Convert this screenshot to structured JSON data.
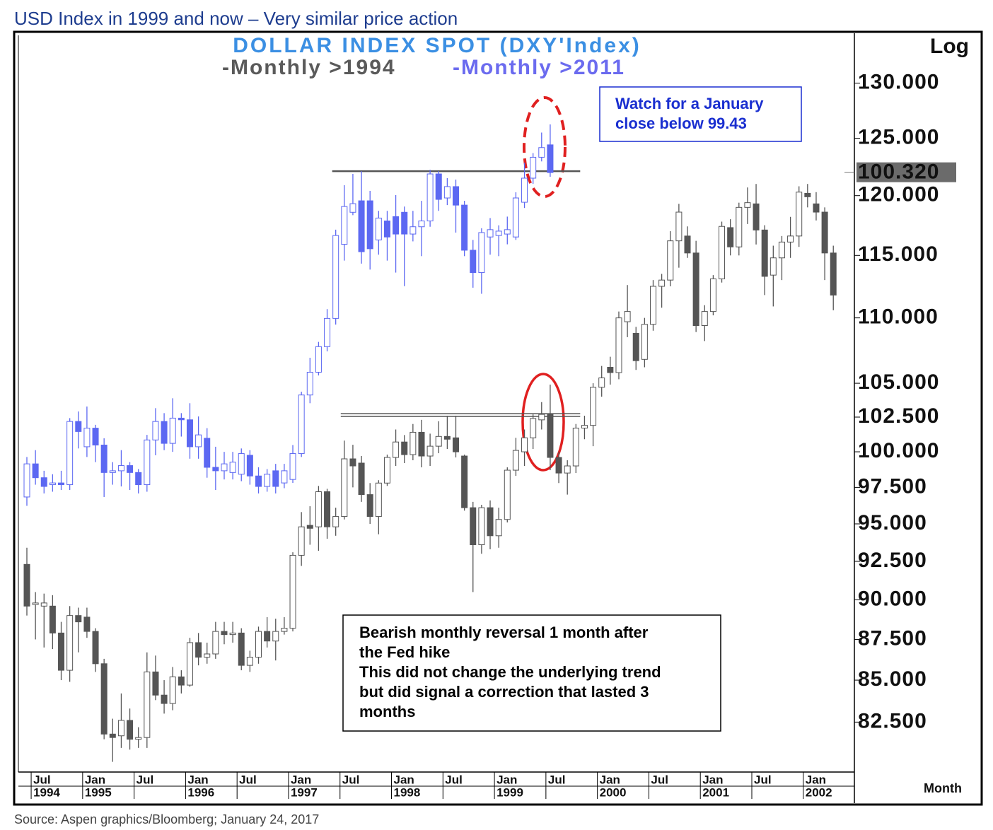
{
  "page_title": "USD Index in 1999 and now – Very similar price action",
  "source": "Source: Aspen graphics/Bloomberg; January 24, 2017",
  "chart_data": {
    "type": "candlestick",
    "title": "DOLLAR INDEX SPOT (DXY'Index)",
    "xlabel": "Month",
    "scale_label": "Log",
    "log_scale": true,
    "ylim": [
      79.7,
      134.5
    ],
    "y2lim": [
      65.5,
      110.6
    ],
    "yticks": [
      {
        "value": 130,
        "label": "130.000"
      },
      {
        "value": 125,
        "label": "125.000"
      },
      {
        "value": 120,
        "label": "120.000"
      },
      {
        "value": 115,
        "label": "115.000"
      },
      {
        "value": 110,
        "label": "110.000"
      },
      {
        "value": 105,
        "label": "105.000"
      },
      {
        "value": 102.5,
        "label": "102.500"
      },
      {
        "value": 100,
        "label": "100.000"
      },
      {
        "value": 97.5,
        "label": "97.500"
      },
      {
        "value": 95,
        "label": "95.000"
      },
      {
        "value": 92.5,
        "label": "92.500"
      },
      {
        "value": 90,
        "label": "90.000"
      },
      {
        "value": 87.5,
        "label": "87.500"
      },
      {
        "value": 85,
        "label": "85.000"
      },
      {
        "value": 82.5,
        "label": "82.500"
      }
    ],
    "current_tag": {
      "value": 100.32,
      "label": "100.320",
      "axis": "y2"
    },
    "x": [
      "1994-06",
      "1994-07",
      "1994-08",
      "1994-09",
      "1994-10",
      "1994-11",
      "1994-12",
      "1995-01",
      "1995-02",
      "1995-03",
      "1995-04",
      "1995-05",
      "1995-06",
      "1995-07",
      "1995-08",
      "1995-09",
      "1995-10",
      "1995-11",
      "1995-12",
      "1996-01",
      "1996-02",
      "1996-03",
      "1996-04",
      "1996-05",
      "1996-06",
      "1996-07",
      "1996-08",
      "1996-09",
      "1996-10",
      "1996-11",
      "1996-12",
      "1997-01",
      "1997-02",
      "1997-03",
      "1997-04",
      "1997-05",
      "1997-06",
      "1997-07",
      "1997-08",
      "1997-09",
      "1997-10",
      "1997-11",
      "1997-12",
      "1998-01",
      "1998-02",
      "1998-03",
      "1998-04",
      "1998-05",
      "1998-06",
      "1998-07",
      "1998-08",
      "1998-09",
      "1998-10",
      "1998-11",
      "1998-12",
      "1999-01",
      "1999-02",
      "1999-03",
      "1999-04",
      "1999-05",
      "1999-06",
      "1999-07",
      "1999-08",
      "1999-09",
      "1999-10",
      "1999-11",
      "1999-12",
      "2000-01",
      "2000-02",
      "2000-03",
      "2000-04",
      "2000-05",
      "2000-06",
      "2000-07",
      "2000-08",
      "2000-09",
      "2000-10",
      "2000-11",
      "2000-12",
      "2001-01",
      "2001-02",
      "2001-03",
      "2001-04",
      "2001-05",
      "2001-06",
      "2001-07",
      "2001-08",
      "2001-09",
      "2001-10",
      "2001-11",
      "2001-12",
      "2002-01",
      "2002-02",
      "2002-03",
      "2002-04"
    ],
    "xticks": [
      {
        "value": "1994-07",
        "label": "Jul",
        "year": "1994"
      },
      {
        "value": "1995-01",
        "label": "Jan",
        "year": "1995"
      },
      {
        "value": "1995-07",
        "label": "Jul"
      },
      {
        "value": "1996-01",
        "label": "Jan",
        "year": "1996"
      },
      {
        "value": "1996-07",
        "label": "Jul"
      },
      {
        "value": "1997-01",
        "label": "Jan",
        "year": "1997"
      },
      {
        "value": "1997-07",
        "label": "Jul"
      },
      {
        "value": "1998-01",
        "label": "Jan",
        "year": "1998"
      },
      {
        "value": "1998-07",
        "label": "Jul"
      },
      {
        "value": "1999-01",
        "label": "Jan",
        "year": "1999"
      },
      {
        "value": "1999-07",
        "label": "Jul"
      },
      {
        "value": "2000-01",
        "label": "Jan",
        "year": "2000"
      },
      {
        "value": "2000-07",
        "label": "Jul"
      },
      {
        "value": "2001-01",
        "label": "Jan",
        "year": "2001"
      },
      {
        "value": "2001-07",
        "label": "Jul"
      },
      {
        "value": "2002-01",
        "label": "Jan",
        "year": "2002"
      }
    ],
    "series": [
      {
        "name": "-Monthly >1994",
        "color": "#555555",
        "label_color": "#5a5a5a",
        "axis": "y",
        "open": [
          92.3,
          89.7,
          89.6,
          89.6,
          87.9,
          85.6,
          89.0,
          88.9,
          88.0,
          86.0,
          81.8,
          81.7,
          82.6,
          81.5,
          81.6,
          85.5,
          84.1,
          83.6,
          85.2,
          84.7,
          87.3,
          86.4,
          86.6,
          88.0,
          87.8,
          87.9,
          85.9,
          86.4,
          88.0,
          87.4,
          88.0,
          88.2,
          92.9,
          94.9,
          94.8,
          97.2,
          94.8,
          95.5,
          99.5,
          99.2,
          97.0,
          95.5,
          97.8,
          99.6,
          100.7,
          99.8,
          101.4,
          99.7,
          100.4,
          101.1,
          101.0,
          99.7,
          96.1,
          93.6,
          96.1,
          94.2,
          95.3,
          98.7,
          100.0,
          101.0,
          102.3,
          102.7,
          99.6,
          98.5,
          99.0,
          101.7,
          101.9,
          104.7,
          106.2,
          105.8,
          109.7,
          108.8,
          106.8,
          109.5,
          112.5,
          113.0,
          116.2,
          116.6,
          115.2,
          109.4,
          110.5,
          113.1,
          117.3,
          115.7,
          119.0,
          119.3,
          117.1,
          113.4,
          114.8,
          116.1,
          116.6,
          120.2,
          119.3,
          118.6,
          115.2
        ],
        "high": [
          93.4,
          90.5,
          90.4,
          90.3,
          88.6,
          89.6,
          89.5,
          89.5,
          88.2,
          86.3,
          82.7,
          84.2,
          83.3,
          82.2,
          86.7,
          86.5,
          85.0,
          85.8,
          85.6,
          87.6,
          87.9,
          87.3,
          88.6,
          88.6,
          88.6,
          88.2,
          86.8,
          88.3,
          88.9,
          88.8,
          88.9,
          93.1,
          95.8,
          96.2,
          97.6,
          97.4,
          96.1,
          100.8,
          100.5,
          99.7,
          97.8,
          98.0,
          99.8,
          101.6,
          101.2,
          102.0,
          102.3,
          101.3,
          102.2,
          102.6,
          102.6,
          99.8,
          96.5,
          96.3,
          96.6,
          96.1,
          98.9,
          101.0,
          101.6,
          102.7,
          103.6,
          104.9,
          100.0,
          99.4,
          102.0,
          102.6,
          105.0,
          106.3,
          107.0,
          110.5,
          112.6,
          109.3,
          110.0,
          113.0,
          113.5,
          117.0,
          119.3,
          117.4,
          116.2,
          111.0,
          113.4,
          117.8,
          118.0,
          119.4,
          120.7,
          121.0,
          117.5,
          115.8,
          116.6,
          118.2,
          120.8,
          121.0,
          120.3,
          119.0,
          115.8
        ],
        "low": [
          89.0,
          87.5,
          87.0,
          86.9,
          85.0,
          84.9,
          86.7,
          87.6,
          85.5,
          81.5,
          80.2,
          81.0,
          80.9,
          81.0,
          81.0,
          83.8,
          83.0,
          83.2,
          84.2,
          84.6,
          85.9,
          86.0,
          86.3,
          87.2,
          87.3,
          85.6,
          85.5,
          86.0,
          87.0,
          86.2,
          87.8,
          88.0,
          92.2,
          93.6,
          93.2,
          94.0,
          94.2,
          95.3,
          97.5,
          96.5,
          95.0,
          94.3,
          97.6,
          99.0,
          99.2,
          99.4,
          98.9,
          99.0,
          99.9,
          100.2,
          99.6,
          95.9,
          90.5,
          93.0,
          93.3,
          93.4,
          95.1,
          98.3,
          99.0,
          100.2,
          101.6,
          98.7,
          97.8,
          97.0,
          98.5,
          100.9,
          100.4,
          104.0,
          104.9,
          105.3,
          108.5,
          106.0,
          106.2,
          109.0,
          110.8,
          112.5,
          114.0,
          114.8,
          108.9,
          108.2,
          110.2,
          112.8,
          115.0,
          115.0,
          117.6,
          115.9,
          111.8,
          110.9,
          113.0,
          114.8,
          115.7,
          119.0,
          117.9,
          113.0,
          110.6
        ],
        "close": [
          89.6,
          89.8,
          89.8,
          87.9,
          85.6,
          89.0,
          88.6,
          88.0,
          86.0,
          81.8,
          81.6,
          82.6,
          81.5,
          81.6,
          85.5,
          84.1,
          83.6,
          85.2,
          84.7,
          87.3,
          86.4,
          86.6,
          88.0,
          87.8,
          87.9,
          85.9,
          86.4,
          88.0,
          87.4,
          88.0,
          88.2,
          92.9,
          94.8,
          94.7,
          97.2,
          94.8,
          95.5,
          99.5,
          99.0,
          97.0,
          95.5,
          97.8,
          99.6,
          100.7,
          99.8,
          101.4,
          99.7,
          100.4,
          101.1,
          100.9,
          100.0,
          96.1,
          93.6,
          96.1,
          94.2,
          95.3,
          98.7,
          100.1,
          101.0,
          102.4,
          102.7,
          99.6,
          98.5,
          99.0,
          101.7,
          101.9,
          104.7,
          105.4,
          105.8,
          110.0,
          110.5,
          106.7,
          109.5,
          112.5,
          113.0,
          116.2,
          118.6,
          115.2,
          109.4,
          110.5,
          113.1,
          117.4,
          115.7,
          119.0,
          119.4,
          117.1,
          113.3,
          114.8,
          116.1,
          116.6,
          120.3,
          119.9,
          118.6,
          115.2,
          111.8
        ]
      },
      {
        "name": "-Monthly >2011",
        "color": "#5c68f2",
        "label_color": "#6b6bef",
        "axis": "y2",
        "open": [
          79.6,
          81.5,
          80.7,
          80.3,
          80.4,
          80.3,
          84.0,
          82.5,
          83.6,
          82.6,
          81.0,
          81.1,
          81.4,
          81.0,
          80.3,
          82.9,
          84.0,
          82.7,
          84.2,
          84.1,
          82.5,
          83.0,
          81.3,
          81.1,
          81.0,
          80.9,
          82.0,
          80.8,
          80.2,
          81.1,
          80.4,
          80.6,
          82.1,
          85.6,
          87.0,
          88.6,
          90.4,
          95.3,
          97.5,
          98.3,
          98.3,
          95.6,
          96.9,
          97.2,
          97.5,
          96.0,
          96.5,
          96.9,
          100.2,
          98.5,
          99.3,
          98.0,
          94.9,
          93.4,
          95.8,
          95.9,
          96.0,
          95.8,
          98.2,
          99.9,
          101.4,
          102.3,
          null,
          null,
          null,
          null,
          null,
          null,
          null,
          null,
          null,
          null,
          null,
          null,
          null,
          null,
          null,
          null,
          null,
          null,
          null,
          null,
          null,
          null,
          null,
          null,
          null,
          null,
          null,
          null,
          null,
          null,
          null,
          null,
          null
        ],
        "high": [
          81.9,
          82.3,
          81.1,
          80.9,
          81.1,
          84.2,
          84.6,
          84.9,
          83.8,
          83.0,
          81.6,
          82.3,
          81.6,
          81.2,
          83.2,
          84.8,
          84.5,
          85.4,
          84.5,
          85.1,
          84.3,
          83.6,
          82.5,
          82.2,
          82.2,
          82.4,
          82.3,
          81.3,
          81.2,
          81.5,
          81.5,
          82.6,
          85.8,
          87.9,
          88.9,
          91.0,
          96.3,
          99.4,
          100.2,
          100.4,
          99.0,
          97.6,
          97.6,
          98.7,
          97.9,
          97.6,
          98.3,
          100.5,
          100.4,
          99.9,
          99.8,
          98.3,
          95.6,
          96.4,
          97.1,
          96.6,
          97.2,
          98.9,
          101.0,
          101.7,
          103.2,
          103.8,
          null,
          null,
          null,
          null,
          null,
          null,
          null,
          null,
          null,
          null,
          null,
          null,
          null,
          null,
          null,
          null,
          null,
          null,
          null,
          null,
          null,
          null,
          null,
          null,
          null,
          null,
          null,
          null,
          null,
          null,
          null,
          null,
          null
        ],
        "low": [
          79.1,
          80.3,
          79.8,
          79.9,
          80.0,
          80.0,
          82.4,
          81.9,
          81.6,
          79.6,
          80.3,
          80.2,
          80.0,
          79.8,
          79.9,
          82.0,
          82.3,
          82.2,
          83.1,
          81.8,
          81.8,
          80.7,
          80.0,
          80.6,
          80.6,
          80.5,
          80.3,
          79.8,
          79.9,
          79.8,
          80.1,
          80.4,
          81.9,
          85.1,
          86.8,
          88.3,
          90.0,
          94.2,
          97.3,
          94.0,
          93.6,
          94.6,
          94.2,
          93.4,
          92.5,
          95.5,
          94.5,
          96.5,
          97.6,
          98.0,
          96.1,
          94.5,
          92.4,
          92.0,
          94.6,
          94.5,
          95.3,
          95.6,
          97.8,
          99.5,
          101.1,
          100.0,
          null,
          null,
          null,
          null,
          null,
          null,
          null,
          null,
          null,
          null,
          null,
          null,
          null,
          null,
          null,
          null,
          null,
          null,
          null,
          null,
          null,
          null,
          null,
          null,
          null,
          null,
          null,
          null,
          null,
          null,
          null,
          null,
          null
        ],
        "close": [
          81.5,
          80.7,
          80.2,
          80.4,
          80.3,
          84.0,
          83.4,
          83.6,
          82.6,
          81.0,
          81.1,
          81.4,
          81.0,
          80.3,
          82.9,
          84.0,
          82.7,
          84.2,
          84.1,
          82.5,
          83.2,
          81.3,
          81.1,
          81.5,
          81.6,
          82.1,
          80.8,
          80.2,
          80.9,
          80.2,
          81.1,
          82.1,
          85.6,
          87.0,
          88.6,
          90.4,
          95.9,
          97.9,
          98.1,
          94.8,
          95.0,
          97.1,
          95.8,
          96.0,
          96.0,
          96.5,
          96.9,
          100.2,
          98.4,
          99.3,
          98.0,
          94.9,
          93.4,
          96.1,
          96.3,
          96.2,
          96.3,
          98.5,
          99.9,
          101.4,
          102.1,
          100.3,
          null,
          null,
          null,
          null,
          null,
          null,
          null,
          null,
          null,
          null,
          null,
          null,
          null,
          null,
          null,
          null,
          null,
          null,
          null,
          null,
          null,
          null,
          null,
          null,
          null,
          null,
          null,
          null,
          null,
          null,
          null,
          null,
          null
        ]
      }
    ],
    "reference_lines": [
      {
        "axis": "y",
        "value": 102.75,
        "from": "1997-07",
        "to": "1999-10"
      },
      {
        "axis": "y",
        "value": 102.55,
        "from": "1997-07",
        "to": "1999-10"
      },
      {
        "axis": "y2",
        "value": 100.4,
        "from": "1997-06",
        "to": "1999-10"
      }
    ],
    "annotations": [
      {
        "lines": [
          "Watch for a January",
          "close below 99.43"
        ],
        "color": "#1a2fd0"
      },
      {
        "lines": [
          "Bearish monthly reversal 1 month after",
          "the Fed hike",
          "This did not change the underlying trend",
          "but did signal a correction that lasted 3",
          "months"
        ],
        "color": "#000000"
      }
    ]
  }
}
